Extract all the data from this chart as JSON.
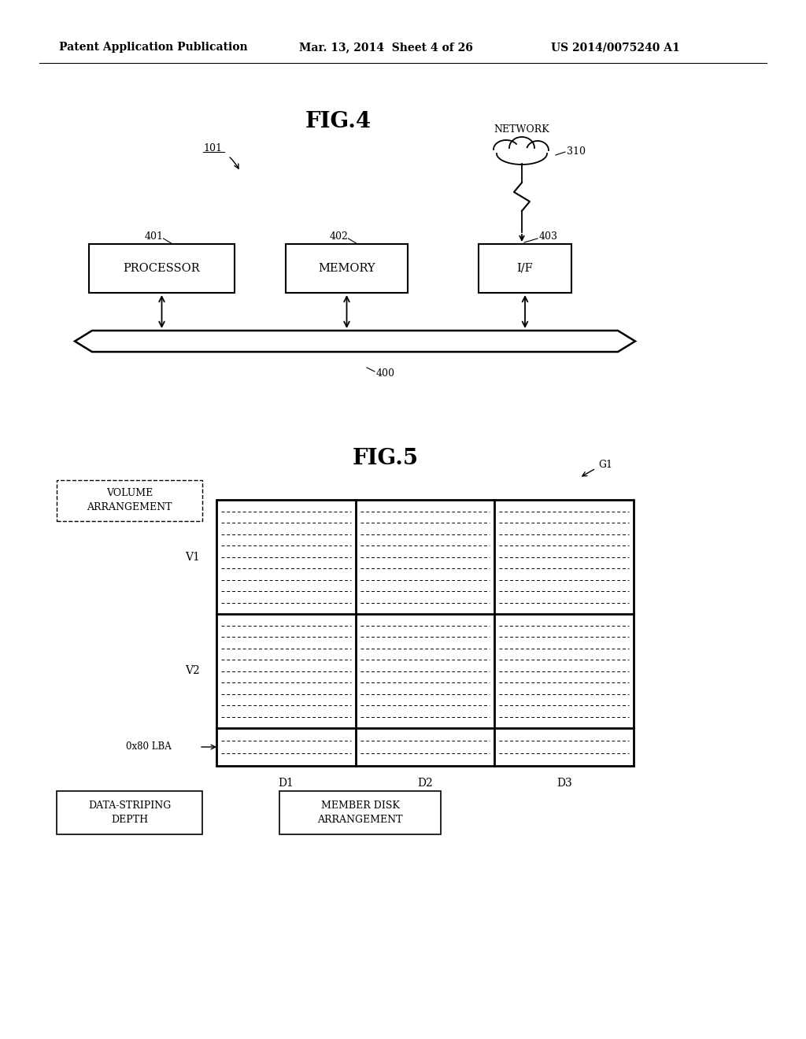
{
  "bg_color": "#ffffff",
  "header_left": "Patent Application Publication",
  "header_mid": "Mar. 13, 2014  Sheet 4 of 26",
  "header_right": "US 2014/0075240 A1",
  "fig4_title": "FIG.4",
  "fig5_title": "FIG.5",
  "fig4_label_101": "101",
  "fig4_label_400": "400",
  "fig4_label_401": "401",
  "fig4_label_402": "402",
  "fig4_label_403": "403",
  "fig4_label_310": "310",
  "fig5_label_V1": "V1",
  "fig5_label_V2": "V2",
  "fig5_label_D1": "D1",
  "fig5_label_D2": "D2",
  "fig5_label_D3": "D3",
  "fig5_label_G1": "G1",
  "fig5_label_lba": "0x80 LBA",
  "line_color": "#000000",
  "text_color": "#000000"
}
